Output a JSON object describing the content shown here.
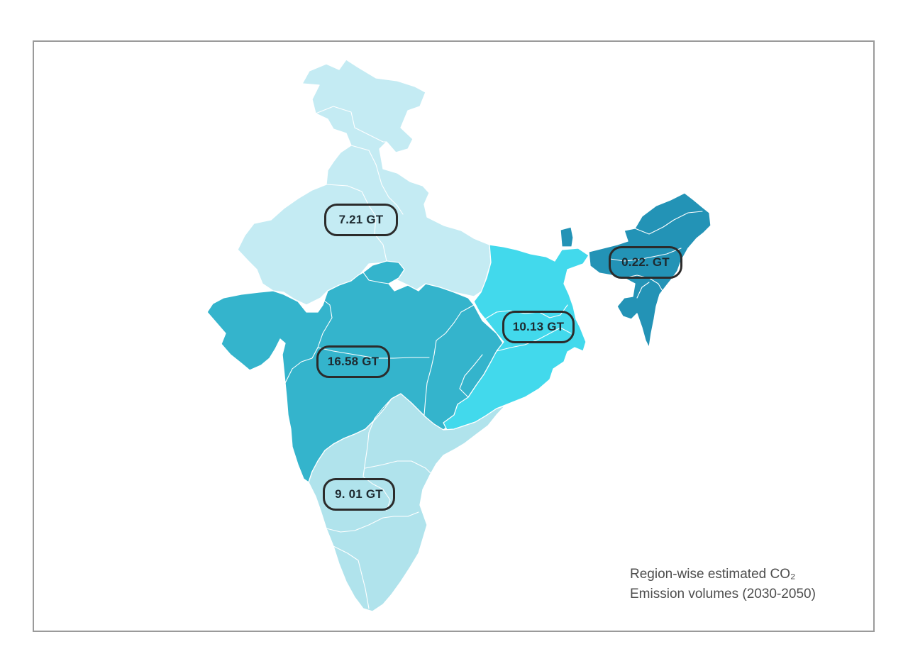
{
  "colors": {
    "north": "#c4ebf3",
    "west": "#34b4cc",
    "east": "#42d9ec",
    "south": "#b0e3ec",
    "northeast": "#2393b6",
    "label_border": "#2b2b2b",
    "frame": "#9a9a9a",
    "caption_text": "#4d4d4d"
  },
  "regions": [
    {
      "id": "north",
      "emission": "7.21 GT"
    },
    {
      "id": "west",
      "emission": "16.58 GT"
    },
    {
      "id": "east",
      "emission": "10.13 GT"
    },
    {
      "id": "south",
      "emission": "9. 01 GT"
    },
    {
      "id": "northeast",
      "emission": "0.22. GT"
    }
  ],
  "caption": {
    "line1": "Region-wise estimated CO₂",
    "line2": "Emission volumes (2030-2050)"
  }
}
